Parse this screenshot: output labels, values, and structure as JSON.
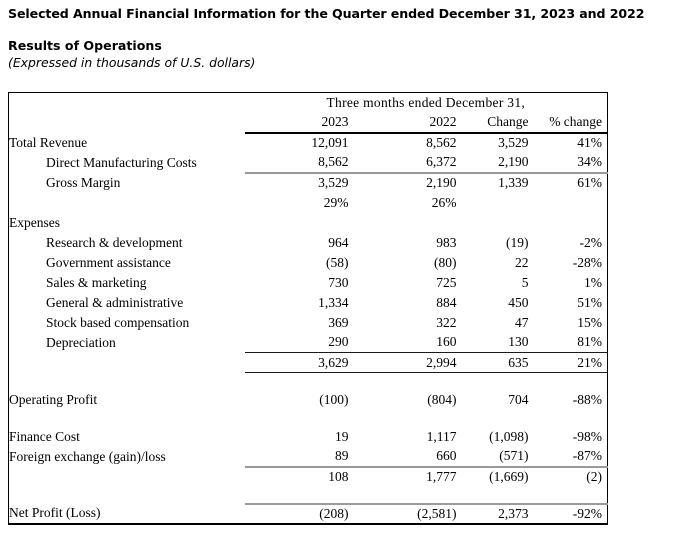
{
  "header": {
    "title": "Selected Annual Financial Information for the Quarter ended December 31, 2023 and 2022",
    "section": "Results of Operations",
    "note": "(Expressed in thousands of U.S. dollars)"
  },
  "table": {
    "period_header": "Three months ended December 31,",
    "columns": [
      "2023",
      "2022",
      "Change",
      "% change"
    ],
    "rows": [
      {
        "label": "Total Revenue",
        "indent": 0,
        "values": [
          "12,091",
          "8,562",
          "3,529",
          "41%"
        ],
        "rule": ""
      },
      {
        "label": "Direct Manufacturing Costs",
        "indent": 1,
        "values": [
          "8,562",
          "6,372",
          "2,190",
          "34%"
        ],
        "rule": "gray"
      },
      {
        "label": "Gross Margin",
        "indent": 1,
        "values": [
          "3,529",
          "2,190",
          "1,339",
          "61%"
        ],
        "rule": ""
      },
      {
        "label": "",
        "indent": 0,
        "values": [
          "29%",
          "26%",
          "",
          ""
        ],
        "rule": ""
      },
      {
        "label": "Expenses",
        "indent": 0,
        "values": [
          "",
          "",
          "",
          ""
        ],
        "rule": ""
      },
      {
        "label": "Research & development",
        "indent": 1,
        "values": [
          "964",
          "983",
          "(19)",
          "-2%"
        ],
        "rule": ""
      },
      {
        "label": "Government assistance",
        "indent": 1,
        "values": [
          "(58)",
          "(80)",
          "22",
          "-28%"
        ],
        "rule": ""
      },
      {
        "label": "Sales & marketing",
        "indent": 1,
        "values": [
          "730",
          "725",
          "5",
          "1%"
        ],
        "rule": ""
      },
      {
        "label": "General & administrative",
        "indent": 1,
        "values": [
          "1,334",
          "884",
          "450",
          "51%"
        ],
        "rule": ""
      },
      {
        "label": "Stock based compensation",
        "indent": 1,
        "values": [
          "369",
          "322",
          "47",
          "15%"
        ],
        "rule": ""
      },
      {
        "label": "Depreciation",
        "indent": 1,
        "values": [
          "290",
          "160",
          "130",
          "81%"
        ],
        "rule": "thin"
      },
      {
        "label": "",
        "indent": 0,
        "values": [
          "3,629",
          "2,994",
          "635",
          "21%"
        ],
        "rule": "thin"
      },
      {
        "label": "",
        "indent": 0,
        "values": [
          "",
          "",
          "",
          ""
        ],
        "rule": "",
        "blank": true
      },
      {
        "label": "Operating Profit",
        "indent": 0,
        "values": [
          "(100)",
          "(804)",
          "704",
          "-88%"
        ],
        "rule": ""
      },
      {
        "label": "",
        "indent": 0,
        "values": [
          "",
          "",
          "",
          ""
        ],
        "rule": "",
        "blank": true
      },
      {
        "label": "Finance Cost",
        "indent": 0,
        "values": [
          "19",
          "1,117",
          "(1,098)",
          "-98%"
        ],
        "rule": ""
      },
      {
        "label": "Foreign exchange (gain)/loss",
        "indent": 0,
        "values": [
          "89",
          "660",
          "(571)",
          "-87%"
        ],
        "rule": "gray"
      },
      {
        "label": "",
        "indent": 0,
        "values": [
          "108",
          "1,777",
          "(1,669)",
          "(2)"
        ],
        "rule": ""
      },
      {
        "label": "",
        "indent": 0,
        "values": [
          "",
          "",
          "",
          ""
        ],
        "rule": "gray",
        "blank": true
      },
      {
        "label": "Net Profit (Loss)",
        "indent": 0,
        "values": [
          "(208)",
          "(2,581)",
          "2,373",
          "-92%"
        ],
        "rule": ""
      }
    ]
  }
}
